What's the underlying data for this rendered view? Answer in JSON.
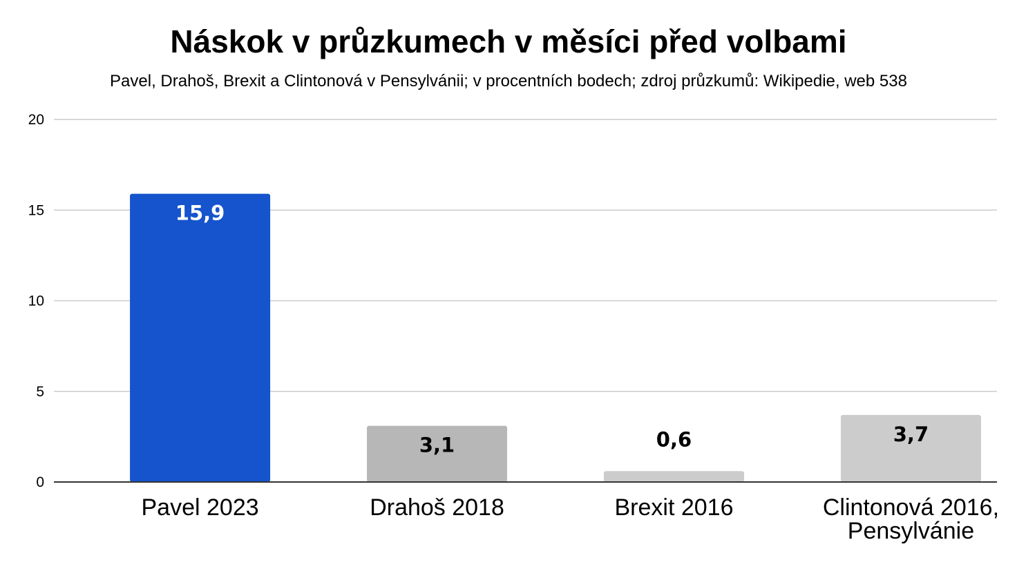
{
  "chart_data": {
    "type": "bar",
    "title": "Náskok v průzkumech v měsíci před volbami",
    "subtitle": "Pavel, Drahoš, Brexit a Clintonová v Pensylvánii; v procentních bodech; zdroj průzkumů: Wikipedie, web 538",
    "categories": [
      [
        "Pavel 2023"
      ],
      [
        "Drahoš 2018"
      ],
      [
        "Brexit 2016"
      ],
      [
        "Clintonová 2016,",
        "Pensylvánie"
      ]
    ],
    "values": [
      15.9,
      3.1,
      0.6,
      3.7
    ],
    "data_labels": [
      "15,9",
      "3,1",
      "0,6",
      "3,7"
    ],
    "bar_colors": [
      "#1554CC",
      "#B7B7B7",
      "#CCCCCC",
      "#CCCCCC"
    ],
    "label_colors": [
      "#FFFFFF",
      "#000000",
      "#000000",
      "#000000"
    ],
    "label_position": [
      "inside",
      "inside",
      "above",
      "inside"
    ],
    "ylim": [
      0,
      20
    ],
    "yticks": [
      0,
      5,
      10,
      15,
      20
    ],
    "xlabel": "",
    "ylabel": "",
    "grid": true,
    "gridline_color": "#CCCCCC",
    "axis_color": "#333333"
  }
}
